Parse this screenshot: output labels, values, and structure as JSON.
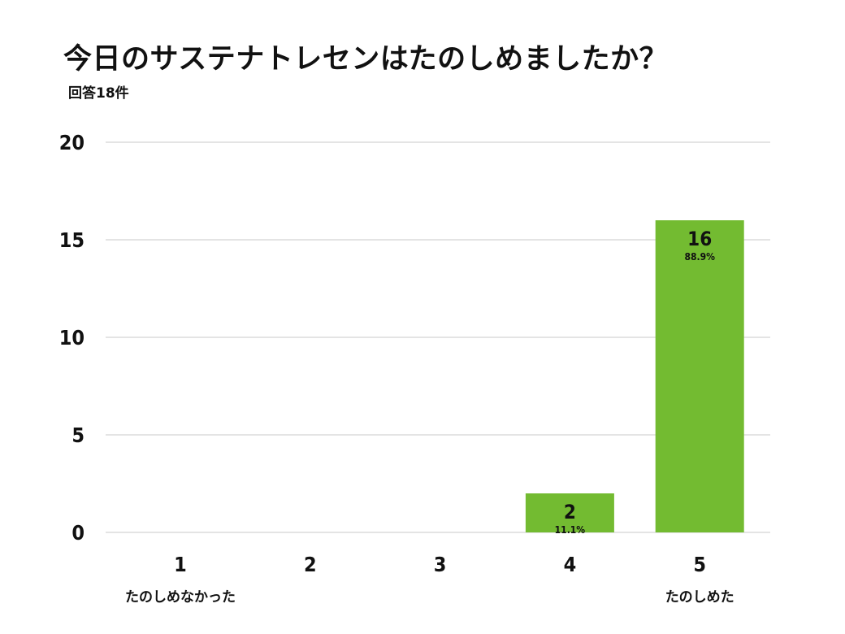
{
  "header": {
    "title": "今日のサステナトレセンはたのしめましたか？",
    "subtitle": "回答18件"
  },
  "chart_data": {
    "type": "bar",
    "title": "今日のサステナトレセンはたのしめましたか？",
    "subtitle": "回答18件",
    "categories": [
      "1",
      "2",
      "3",
      "4",
      "5"
    ],
    "category_sublabels": [
      "たのしめなかった",
      "",
      "",
      "",
      "たのしめた"
    ],
    "values": [
      0,
      0,
      0,
      2,
      16
    ],
    "percent_labels": [
      "",
      "",
      "",
      "11.1%",
      "88.9%"
    ],
    "ylim": [
      0,
      20
    ],
    "yticks": [
      "0",
      "5",
      "10",
      "15",
      "20"
    ],
    "grid": true,
    "bar_color": "#73bb31",
    "grid_color": "#dcdcdc"
  }
}
